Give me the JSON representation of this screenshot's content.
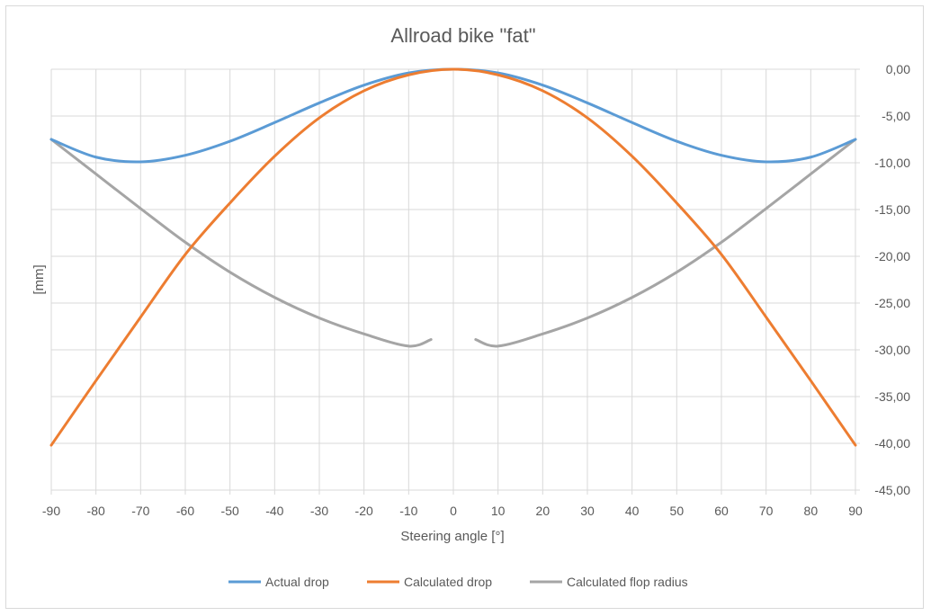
{
  "chart_data": {
    "type": "line",
    "title": "Allroad bike \"fat\"",
    "xlabel": "Steering angle [°]",
    "ylabel": "[mm]",
    "xlim": [
      -90,
      90
    ],
    "ylim": [
      -45,
      0
    ],
    "x_ticks": [
      "-90",
      "-80",
      "-70",
      "-60",
      "-50",
      "-40",
      "-30",
      "-20",
      "-10",
      "0",
      "10",
      "20",
      "30",
      "40",
      "50",
      "60",
      "70",
      "80",
      "90"
    ],
    "y_ticks": [
      "0,00",
      "-5,00",
      "-10,00",
      "-15,00",
      "-20,00",
      "-25,00",
      "-30,00",
      "-35,00",
      "-40,00",
      "-45,00"
    ],
    "y_axis_side": "right",
    "grid": true,
    "legend_position": "bottom",
    "series": [
      {
        "name": "Actual drop",
        "color": "#5b9bd5",
        "x": [
          -90,
          -80,
          -70,
          -60,
          -50,
          -40,
          -30,
          -20,
          -10,
          0,
          10,
          20,
          30,
          40,
          50,
          60,
          70,
          80,
          90
        ],
        "y": [
          -7.5,
          -9.4,
          -9.9,
          -9.2,
          -7.7,
          -5.7,
          -3.6,
          -1.7,
          -0.4,
          0,
          -0.4,
          -1.7,
          -3.6,
          -5.7,
          -7.7,
          -9.2,
          -9.9,
          -9.4,
          -7.5
        ]
      },
      {
        "name": "Calculated drop",
        "color": "#ed7d31",
        "x": [
          -90,
          -80,
          -70,
          -60,
          -50,
          -40,
          -30,
          -20,
          -10,
          0,
          10,
          20,
          30,
          40,
          50,
          60,
          70,
          80,
          90
        ],
        "y": [
          -40.2,
          -33.3,
          -26.5,
          -19.8,
          -14.3,
          -9.3,
          -5.2,
          -2.3,
          -0.6,
          0,
          -0.6,
          -2.3,
          -5.2,
          -9.3,
          -14.3,
          -19.8,
          -26.5,
          -33.3,
          -40.2
        ]
      },
      {
        "name": "Calculated flop radius",
        "color": "#a5a5a5",
        "x": [
          -90,
          -80,
          -70,
          -60,
          -50,
          -40,
          -30,
          -20,
          -10,
          -5,
          null,
          5,
          10,
          20,
          30,
          40,
          50,
          60,
          70,
          80,
          90
        ],
        "y": [
          -7.5,
          -11.2,
          -14.9,
          -18.5,
          -21.7,
          -24.4,
          -26.6,
          -28.3,
          -29.6,
          -28.9,
          null,
          -28.9,
          -29.6,
          -28.3,
          -26.6,
          -24.4,
          -21.7,
          -18.5,
          -14.9,
          -11.2,
          -7.5
        ]
      }
    ]
  }
}
